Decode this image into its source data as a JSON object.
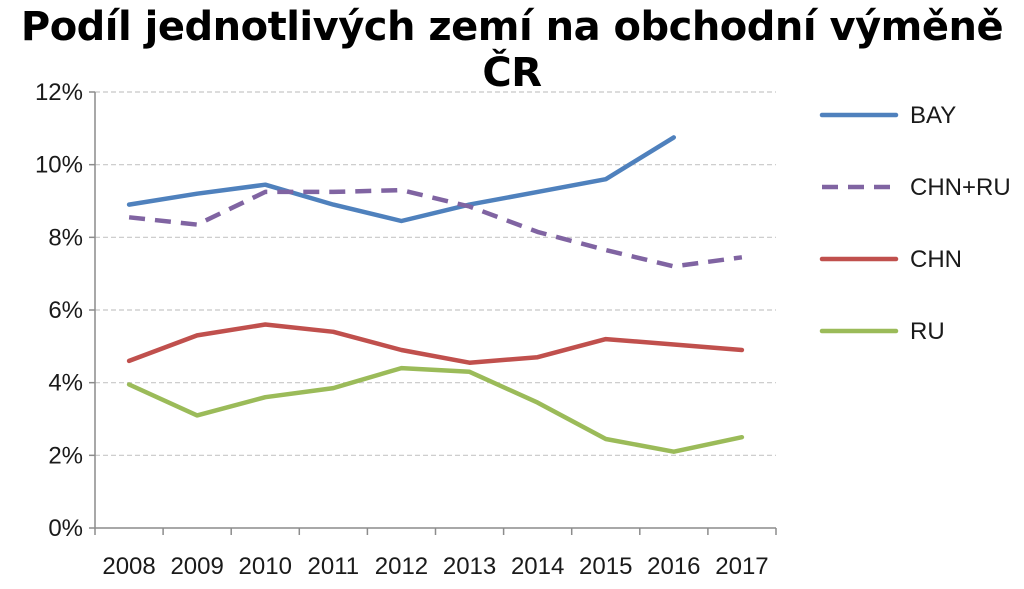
{
  "chart_data": {
    "type": "line",
    "title": "Podíl jednotlivých zemí na obchodní výměně ČR",
    "xlabel": "",
    "ylabel": "",
    "categories": [
      "2008",
      "2009",
      "2010",
      "2011",
      "2012",
      "2013",
      "2014",
      "2015",
      "2016",
      "2017"
    ],
    "ylim": [
      0,
      12
    ],
    "yticks": [
      "0%",
      "2%",
      "4%",
      "6%",
      "8%",
      "10%",
      "12%"
    ],
    "grid": true,
    "legend": "right",
    "series": [
      {
        "name": "BAY",
        "color": "#4F81BD",
        "dashed": false,
        "values": [
          8.9,
          9.2,
          9.45,
          8.9,
          8.45,
          8.9,
          9.25,
          9.6,
          10.75,
          null
        ]
      },
      {
        "name": "CHN+RU",
        "color": "#8064A2",
        "dashed": true,
        "values": [
          8.55,
          8.35,
          9.25,
          9.25,
          9.3,
          8.85,
          8.15,
          7.65,
          7.2,
          7.45
        ]
      },
      {
        "name": "CHN",
        "color": "#C0504D",
        "dashed": false,
        "values": [
          4.6,
          5.3,
          5.6,
          5.4,
          4.9,
          4.55,
          4.7,
          5.2,
          5.05,
          4.9
        ]
      },
      {
        "name": "RU",
        "color": "#9BBB59",
        "dashed": false,
        "values": [
          3.95,
          3.1,
          3.6,
          3.85,
          4.4,
          4.3,
          3.45,
          2.45,
          2.1,
          2.5
        ]
      }
    ]
  }
}
